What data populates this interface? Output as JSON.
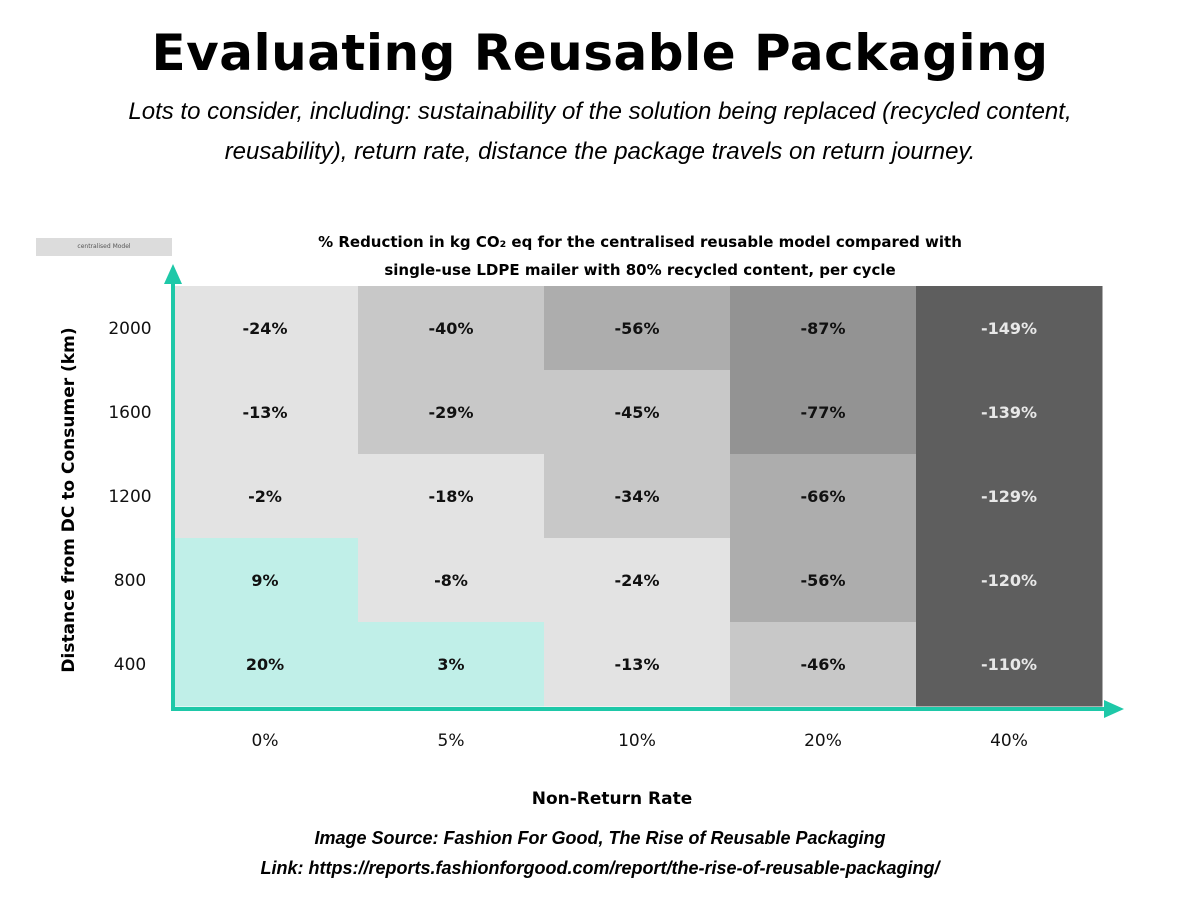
{
  "header": {
    "title": "Evaluating Reusable Packaging",
    "subtitle_line1": "Lots to consider, including: sustainability of the solution being replaced (recycled content,",
    "subtitle_line2": "reusability), return rate, distance the package travels on return journey."
  },
  "model_tag": "centralised Model",
  "chart_data": {
    "type": "heatmap",
    "title_line1": "% Reduction in kg CO₂ eq for the centralised reusable model compared with",
    "title_line2": "single-use LDPE mailer with 80% recycled content, per cycle",
    "xlabel": "Non-Return Rate",
    "ylabel": "Distance from DC to Consumer (km)",
    "x_categories": [
      "0%",
      "5%",
      "10%",
      "20%",
      "40%"
    ],
    "y_categories": [
      "2000",
      "1600",
      "1200",
      "800",
      "400"
    ],
    "values": [
      [
        -24,
        -40,
        -56,
        -87,
        -149
      ],
      [
        -13,
        -29,
        -45,
        -77,
        -139
      ],
      [
        -2,
        -18,
        -34,
        -66,
        -129
      ],
      [
        9,
        -8,
        -24,
        -56,
        -120
      ],
      [
        20,
        3,
        -13,
        -46,
        -110
      ]
    ],
    "colors": [
      [
        "#e3e3e3",
        "#c8c8c8",
        "#adadad",
        "#939393",
        "#5e5e5e"
      ],
      [
        "#e3e3e3",
        "#c8c8c8",
        "#c8c8c8",
        "#939393",
        "#5e5e5e"
      ],
      [
        "#e3e3e3",
        "#e3e3e3",
        "#c8c8c8",
        "#adadad",
        "#5e5e5e"
      ],
      [
        "#c0efe8",
        "#e3e3e3",
        "#e3e3e3",
        "#adadad",
        "#5e5e5e"
      ],
      [
        "#c0efe8",
        "#c0efe8",
        "#e3e3e3",
        "#c8c8c8",
        "#5e5e5e"
      ]
    ],
    "axis_color": "#1ec8a8",
    "legend": "none",
    "grid": false
  },
  "footer": {
    "source": "Image Source: Fashion For Good, The Rise of Reusable Packaging",
    "link": "Link: https://reports.fashionforgood.com/report/the-rise-of-reusable-packaging/"
  }
}
